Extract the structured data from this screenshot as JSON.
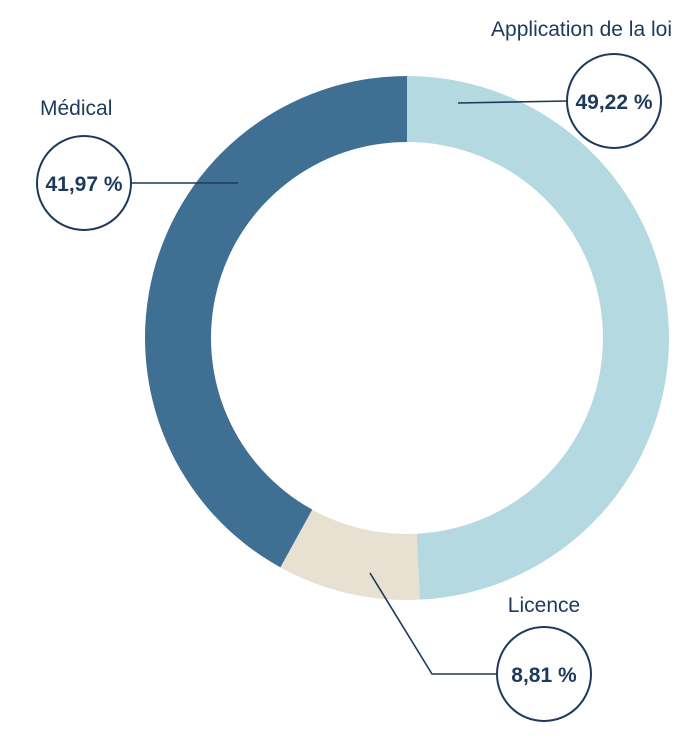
{
  "chart_data": {
    "type": "pie",
    "variant": "donut",
    "title": "",
    "start_angle_deg": 0,
    "direction": "clockwise",
    "slices": [
      {
        "label": "Application de la loi",
        "value": 49.22,
        "value_label": "49,22 %",
        "color": "#b5d9e1"
      },
      {
        "label": "Licence",
        "value": 8.81,
        "value_label": "8,81 %",
        "color": "#e8e0d1"
      },
      {
        "label": "Médical",
        "value": 41.97,
        "value_label": "41,97 %",
        "color": "#3f6f93"
      }
    ],
    "legend": "none"
  },
  "colors": {
    "text": "#1d3a5c",
    "background": "#ffffff"
  }
}
